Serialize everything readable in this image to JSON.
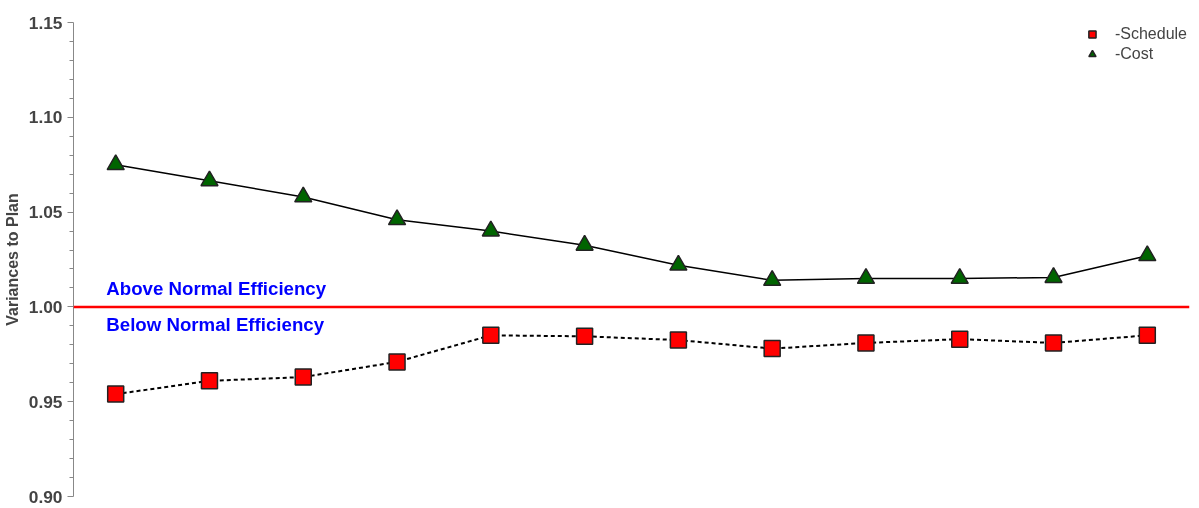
{
  "chart_data": {
    "type": "line",
    "ylabel": "Variances to Plan",
    "categories": [
      null,
      null,
      null,
      null,
      null,
      null,
      null,
      null,
      null,
      null,
      null,
      null
    ],
    "series": [
      {
        "name": "-Schedule",
        "color": "#ff0000",
        "marker": "square",
        "line_style": "dashed",
        "values": [
          0.954,
          0.961,
          0.963,
          0.971,
          0.985,
          0.9845,
          0.9825,
          0.978,
          0.981,
          0.983,
          0.981,
          0.985
        ]
      },
      {
        "name": "-Cost",
        "color": "#006400",
        "marker": "triangle",
        "line_style": "solid",
        "values": [
          1.075,
          1.0665,
          1.058,
          1.046,
          1.04,
          1.0325,
          1.022,
          1.014,
          1.015,
          1.015,
          1.0155,
          1.027
        ]
      }
    ],
    "ylim": [
      0.9,
      1.15
    ],
    "yticks": [
      {
        "value": 0.9,
        "label": "0.90"
      },
      0.95,
      {
        "value": 1.0,
        "label": "1.00"
      },
      1.05,
      {
        "value": 1.1,
        "label": "1.10"
      },
      1.15
    ],
    "ref_lines": [
      {
        "axis": "y",
        "value": 1.0,
        "label": null,
        "color": "#ff0000"
      }
    ],
    "annotations": [
      "Above Normal Efficiency",
      "Below Normal Efficiency"
    ],
    "tick_labels": "y",
    "grid": false,
    "legend": "top right"
  }
}
